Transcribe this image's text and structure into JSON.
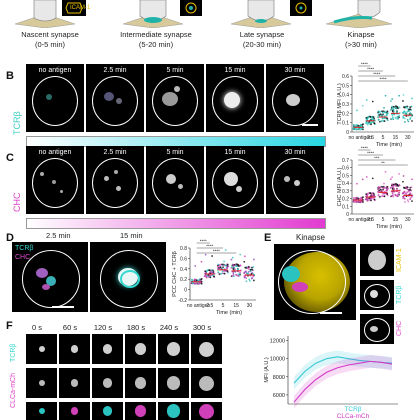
{
  "panel_A": {
    "legend_label": "ICAM-1",
    "stages": [
      {
        "name": "Nascent synapse",
        "time": "(0-5 min)"
      },
      {
        "name": "Intermediate synapse",
        "time": "(5-20 min)"
      },
      {
        "name": "Late synapse",
        "time": "(20-30 min)"
      },
      {
        "name": "Kinapse",
        "time": "(>30 min)"
      }
    ]
  },
  "panel_B": {
    "letter": "B",
    "channel": "TCRβ",
    "channel_color": "#3ecfc6",
    "times": [
      "no antigen",
      "2.5 min",
      "5 min",
      "15 min",
      "30 min"
    ],
    "gradient_color": "#27d6e3"
  },
  "panel_C": {
    "letter": "C",
    "channel": "CHC",
    "channel_color": "#e040c8",
    "times": [
      "no antigen",
      "2.5 min",
      "5 min",
      "15 min",
      "30 min"
    ],
    "gradient_color": "#e23ad0"
  },
  "panel_D": {
    "letter": "D",
    "times": [
      "2.5 min",
      "15 min"
    ],
    "overlay_labels": [
      "TCRβ",
      "CHC"
    ],
    "overlay_colors": [
      "#35d8d0",
      "#d84bd0"
    ]
  },
  "panel_E": {
    "letter": "E",
    "title": "Kinapse",
    "channels": [
      "ICAM-1",
      "TCRβ",
      "CHC"
    ],
    "channel_colors": [
      "#e8c000",
      "#35d8d0",
      "#e040c8"
    ]
  },
  "panel_F": {
    "letter": "F",
    "times": [
      "0 s",
      "60 s",
      "120 s",
      "180 s",
      "240 s",
      "300 s"
    ],
    "row_labels": [
      "TCRβ",
      "CLCa-mCh"
    ],
    "row_colors": [
      "#35d8d0",
      "#e040c8"
    ]
  },
  "chart_data": [
    {
      "type": "scatter",
      "panel": "B",
      "ylabel": "TCRβ MFI (A.U.)",
      "xlabel": "Time (min)",
      "categories": [
        "no antigen",
        "2.5",
        "5",
        "15",
        "30"
      ],
      "y_ticks": [
        "0",
        "0.1",
        "0.2",
        "0.3",
        "0.4",
        "0.5",
        "0.6"
      ],
      "ylim": [
        0,
        0.6
      ],
      "medians": [
        0.05,
        0.12,
        0.16,
        0.2,
        0.18
      ],
      "significance": [
        "****",
        "****",
        "****",
        "****"
      ]
    },
    {
      "type": "scatter",
      "panel": "C",
      "ylabel": "CHC MFI (A.U.)",
      "xlabel": "Time (min)",
      "categories": [
        "no antigen",
        "2.5",
        "5",
        "15",
        "30"
      ],
      "y_ticks": [
        "0",
        "0.1",
        "0.2",
        "0.3",
        "0.4",
        "0.5",
        "0.6",
        "0.7"
      ],
      "ylim": [
        0,
        0.7
      ],
      "medians": [
        0.18,
        0.22,
        0.28,
        0.3,
        0.24
      ],
      "significance": [
        "****",
        "****",
        "***",
        "**"
      ]
    },
    {
      "type": "scatter",
      "panel": "D",
      "ylabel": "PCC CHC + TCRβ",
      "xlabel": "Time (min)",
      "categories": [
        "no antigen",
        "2.5",
        "5",
        "15",
        "30"
      ],
      "y_ticks": [
        "-0.2",
        "0",
        "0.2",
        "0.4",
        "0.6",
        "0.8"
      ],
      "ylim": [
        -0.2,
        0.8
      ],
      "medians": [
        0.15,
        0.3,
        0.38,
        0.36,
        0.28
      ],
      "significance": [
        "****",
        "****",
        "****"
      ]
    },
    {
      "type": "line",
      "panel": "F",
      "ylabel": "MFI (A.U.)",
      "y_ticks": [
        "6000",
        "8000",
        "10000",
        "12000"
      ],
      "ylim": [
        5000,
        12500
      ],
      "series": [
        {
          "name": "TCRβ",
          "color": "#35c9d6",
          "values": [
            7300,
            8600,
            9500,
            10000,
            10200,
            10000,
            9800,
            9700,
            9600,
            9500
          ]
        },
        {
          "name": "CLCa-mCh",
          "color": "#d23ac8",
          "values": [
            5200,
            6600,
            7700,
            8500,
            9000,
            9300,
            9500,
            9700,
            9600,
            9400
          ]
        }
      ]
    }
  ]
}
